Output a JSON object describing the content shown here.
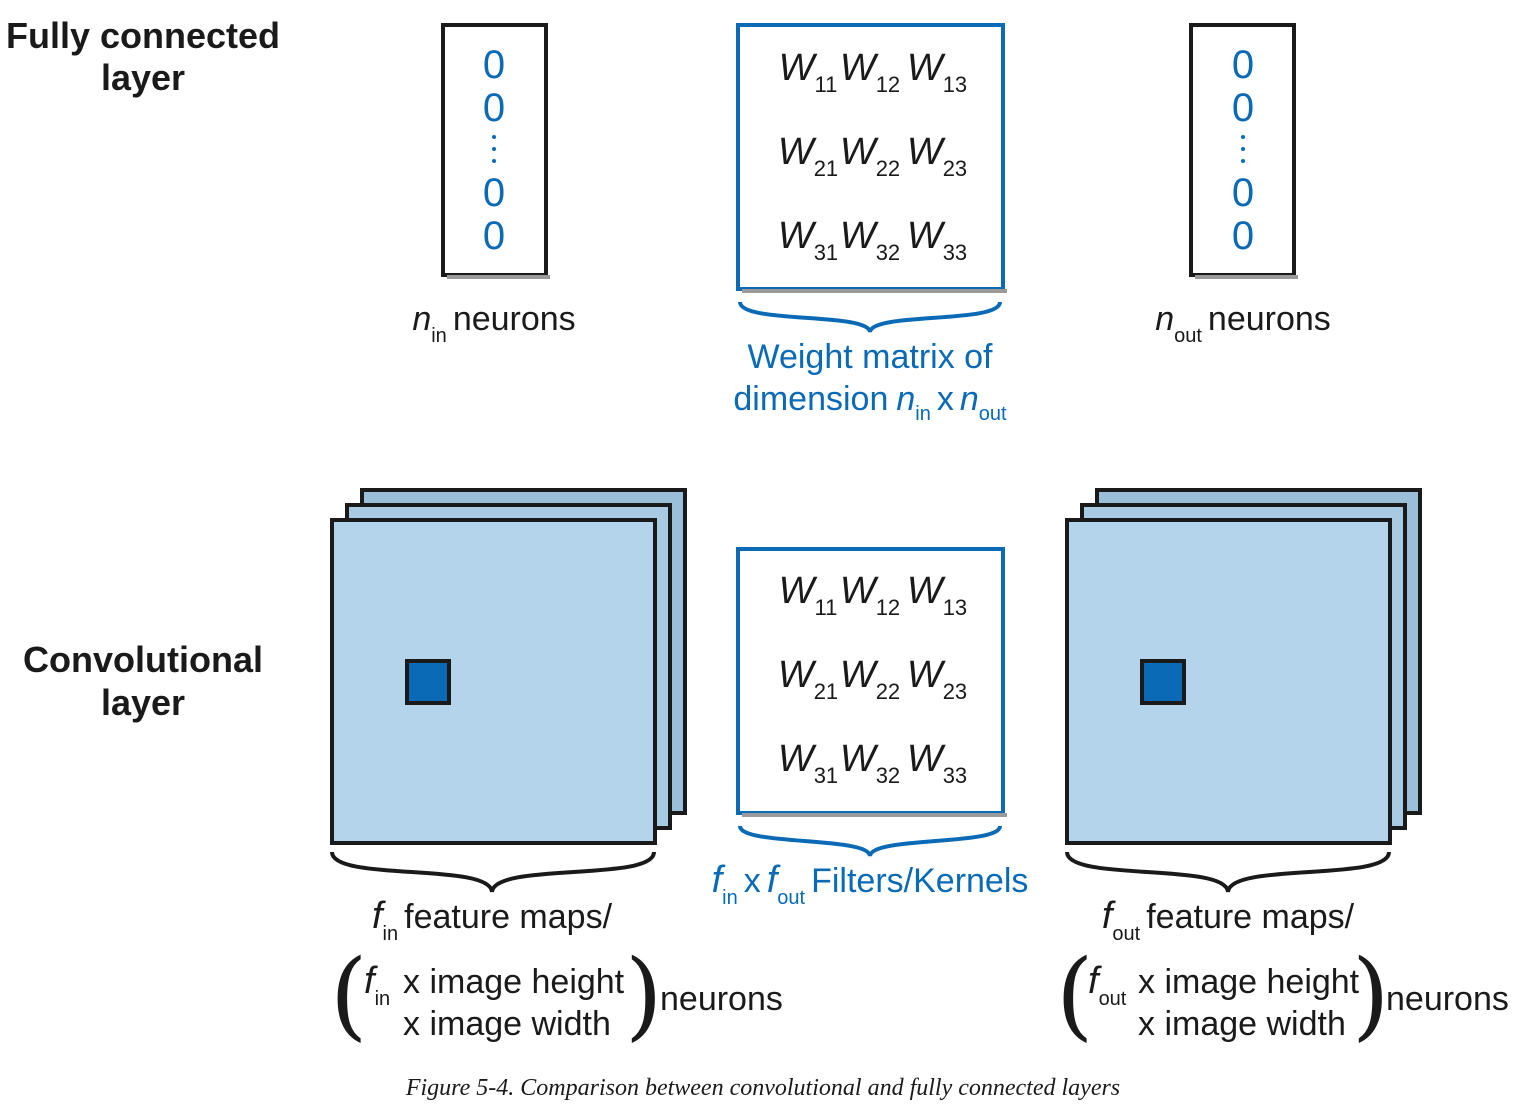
{
  "section_labels": {
    "fc_line1": "Fully connected",
    "fc_line2": "layer",
    "conv_line1": "Convolutional",
    "conv_line2": "layer"
  },
  "fc": {
    "input_vector": [
      "0",
      "0",
      "0",
      "0"
    ],
    "output_vector": [
      "0",
      "0",
      "0",
      "0"
    ],
    "input_label": {
      "var": "n",
      "sub": "in",
      "text": "neurons"
    },
    "output_label": {
      "var": "n",
      "sub": "out",
      "text": "neurons"
    },
    "matrix_caption_line1": "Weight matrix of",
    "matrix_caption_line2": {
      "text": "dimension",
      "var1": "n",
      "sub1": "in",
      "times": "x",
      "var2": "n",
      "sub2": "out"
    }
  },
  "weights": {
    "symbol": "W",
    "subs": [
      [
        "11",
        "12",
        "13"
      ],
      [
        "21",
        "22",
        "23"
      ],
      [
        "31",
        "32",
        "33"
      ]
    ]
  },
  "conv": {
    "kernel_caption": {
      "var1": "f",
      "sub1": "in",
      "times": "x",
      "var2": "f",
      "sub2": "out",
      "text": "Filters/Kernels"
    },
    "input": {
      "var": "f",
      "sub": "in",
      "line1": "feature maps/",
      "bracket_line1": "x image height",
      "bracket_line2": "x image width",
      "suffix": "neurons"
    },
    "output": {
      "var": "f",
      "sub": "out",
      "line1": "feature maps/",
      "bracket_line1": "x image height",
      "bracket_line2": "x image width",
      "suffix": "neurons"
    }
  },
  "caption": "Figure 5-4. Comparison between convolutional and fully connected layers",
  "colors": {
    "accent": "#0a6ab6",
    "feature_map": "#b3d4ea",
    "feature_map_back": "#9bbfd9",
    "ink": "#1a1a1a"
  }
}
